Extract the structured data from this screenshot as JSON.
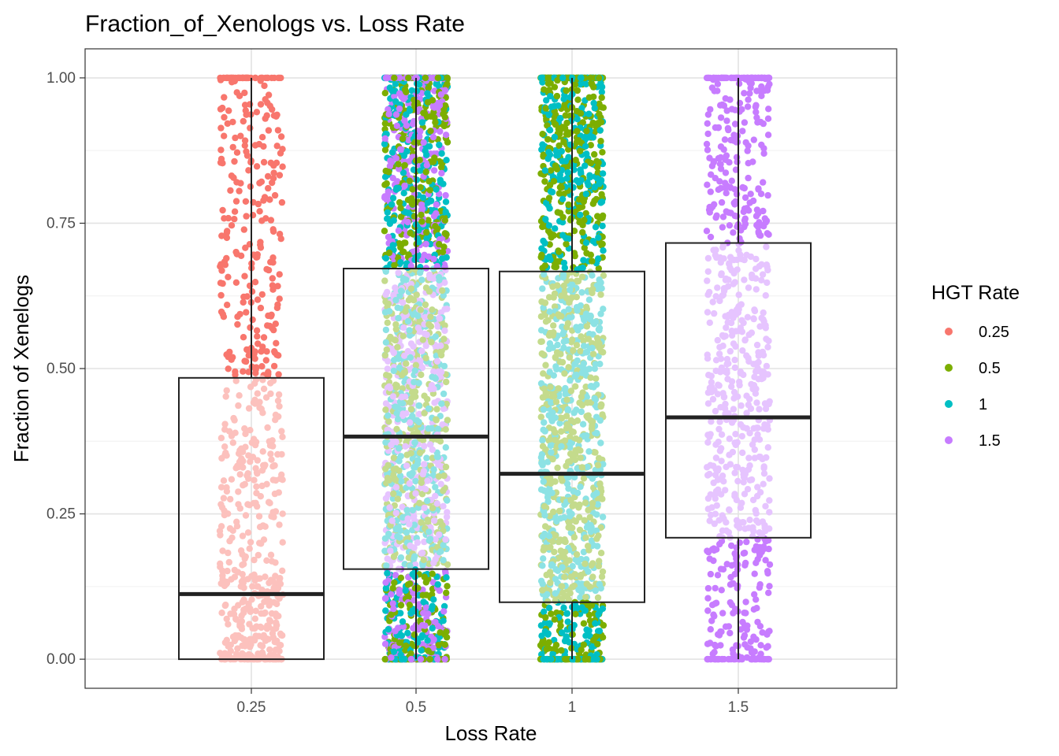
{
  "chart_data": {
    "type": "boxplot",
    "title": "Fraction_of_Xenologs vs. Loss Rate",
    "xlabel": "Loss Rate",
    "ylabel": "Fraction of Xenelogs",
    "categories": [
      "0.25",
      "0.5",
      "1",
      "1.5"
    ],
    "ylim": [
      -0.05,
      1.05
    ],
    "yticks": [
      0.0,
      0.25,
      0.5,
      0.75,
      1.0
    ],
    "ytick_labels": [
      "0.00",
      "0.25",
      "0.50",
      "0.75",
      "1.00"
    ],
    "grid": true,
    "legend": {
      "title": "HGT Rate",
      "placement": "right",
      "entries": [
        {
          "label": "0.25",
          "color": "#F8766D"
        },
        {
          "label": "0.5",
          "color": "#7CAE00"
        },
        {
          "label": "1",
          "color": "#00BFC4"
        },
        {
          "label": "1.5",
          "color": "#C77CFF"
        }
      ]
    },
    "boxes": [
      {
        "category": "0.25",
        "min": 0.0,
        "q1": 0.0,
        "median": 0.112,
        "q3": 0.484,
        "max": 1.0
      },
      {
        "category": "0.5",
        "min": 0.0,
        "q1": 0.155,
        "median": 0.383,
        "q3": 0.672,
        "max": 1.0
      },
      {
        "category": "1",
        "min": 0.0,
        "q1": 0.098,
        "median": 0.319,
        "q3": 0.667,
        "max": 1.0
      },
      {
        "category": "1.5",
        "min": 0.0,
        "q1": 0.209,
        "median": 0.416,
        "q3": 0.716,
        "max": 1.0
      }
    ],
    "points": [
      {
        "category": "0.25",
        "hgt_colors": [
          "#F8766D"
        ],
        "count": 700
      },
      {
        "category": "0.5",
        "hgt_colors": [
          "#7CAE00",
          "#00BFC4",
          "#C77CFF"
        ],
        "count": 2100
      },
      {
        "category": "1",
        "hgt_colors": [
          "#7CAE00",
          "#00BFC4"
        ],
        "count": 1600
      },
      {
        "category": "1.5",
        "hgt_colors": [
          "#C77CFF"
        ],
        "count": 800
      }
    ]
  }
}
